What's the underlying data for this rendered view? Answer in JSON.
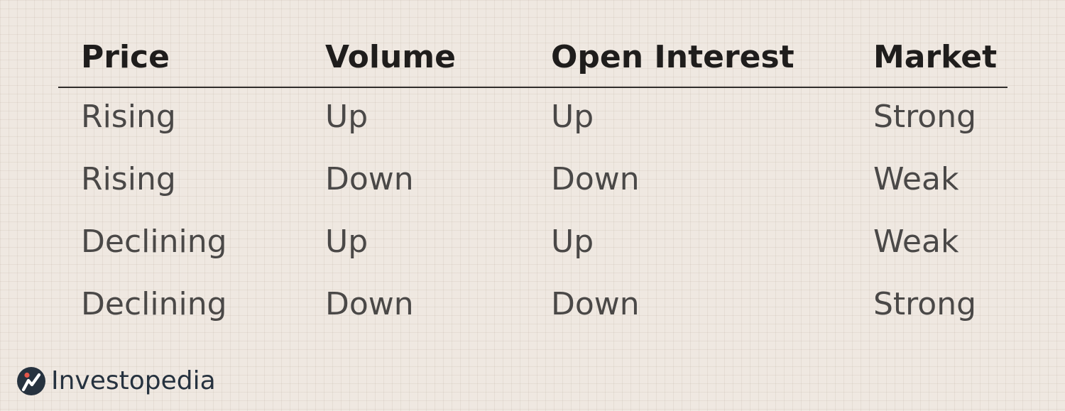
{
  "table": {
    "headers": [
      "Price",
      "Volume",
      "Open Interest",
      "Market"
    ],
    "rows": [
      [
        "Rising",
        "Up",
        "Up",
        "Strong"
      ],
      [
        "Rising",
        "Down",
        "Down",
        "Weak"
      ],
      [
        "Declining",
        "Up",
        "Up",
        "Weak"
      ],
      [
        "Declining",
        "Down",
        "Down",
        "Strong"
      ]
    ]
  },
  "brand": {
    "name": "Investopedia",
    "icon": "investopedia-logo-icon"
  },
  "colors": {
    "background": "#efe8e1",
    "header_text": "#1f1d1c",
    "body_text": "#4a4847",
    "rule": "#2f2c2a",
    "logo_navy": "#26323f",
    "logo_accent": "#e3564a"
  }
}
